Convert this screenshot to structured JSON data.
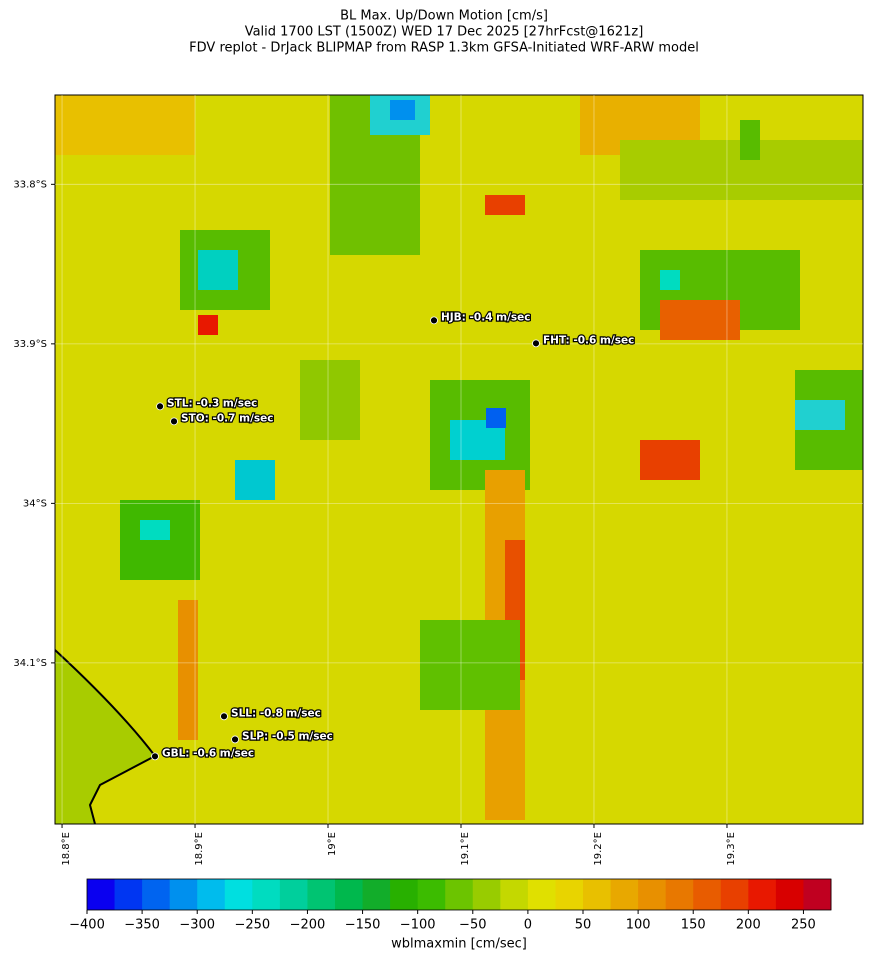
{
  "chart_data": {
    "type": "map",
    "title": "BL Max. Up/Down Motion [cm/s]",
    "subtitle": "Valid 1700 LST (1500Z) WED 17 Dec 2025 [27hrFcst@1621z]",
    "caption": "FDV replot - DrJack BLIPMAP from RASP 1.3km GFSA-Initiated WRF-ARW model",
    "xlim": [
      18.7947,
      19.4023
    ],
    "ylim": [
      -34.201,
      -33.744
    ],
    "xticks": [
      {
        "value": 18.8,
        "label": "18.8°E"
      },
      {
        "value": 18.9,
        "label": "18.9°E"
      },
      {
        "value": 19.0,
        "label": "19°E"
      },
      {
        "value": 19.1,
        "label": "19.1°E"
      },
      {
        "value": 19.2,
        "label": "19.2°E"
      },
      {
        "value": 19.3,
        "label": "19.3°E"
      }
    ],
    "yticks": [
      {
        "value": -33.8,
        "label": "33.8°S"
      },
      {
        "value": -33.9,
        "label": "33.9°S"
      },
      {
        "value": -34.0,
        "label": "34°S"
      },
      {
        "value": -34.1,
        "label": "34.1°S"
      }
    ],
    "grid": true,
    "stations": {
      "labels": [
        "HJB: -0.4 m/sec",
        "FHT: -0.6 m/sec",
        "STL: -0.3 m/sec",
        "STO: -0.7 m/sec",
        "SLL: -0.8 m/sec",
        "SLP: -0.5 m/sec",
        "GBL: -0.6 m/sec"
      ],
      "x": [
        19.0797,
        19.1564,
        18.8737,
        18.8842,
        18.9218,
        18.9301,
        18.8699
      ],
      "y": [
        -33.8853,
        -33.8997,
        -33.9392,
        -33.9486,
        -34.1335,
        -34.148,
        -34.1586
      ]
    },
    "colorbar": {
      "label": "wblmaxmin [cm/sec]",
      "lim": [
        -400,
        275
      ],
      "ticks": [
        {
          "value": -400,
          "label": "−400"
        },
        {
          "value": -350,
          "label": "−350"
        },
        {
          "value": -300,
          "label": "−300"
        },
        {
          "value": -250,
          "label": "−250"
        },
        {
          "value": -200,
          "label": "−200"
        },
        {
          "value": -150,
          "label": "−150"
        },
        {
          "value": -100,
          "label": "−100"
        },
        {
          "value": -50,
          "label": "−50"
        },
        0,
        50,
        100,
        150,
        200,
        250
      ],
      "colors": [
        "#0a00f0",
        "#0036f2",
        "#0064f0",
        "#0090ee",
        "#00bced",
        "#00dfe0",
        "#00dcc0",
        "#00cf9c",
        "#00c472",
        "#00b84d",
        "#12ad2a",
        "#28b000",
        "#3cbc00",
        "#6cc400",
        "#98cc00",
        "#c4d800",
        "#e0e000",
        "#e8d400",
        "#e8c000",
        "#e8a800",
        "#e89000",
        "#e87800",
        "#e85c00",
        "#e84000",
        "#e81800",
        "#d80000",
        "#c00020"
      ]
    }
  }
}
